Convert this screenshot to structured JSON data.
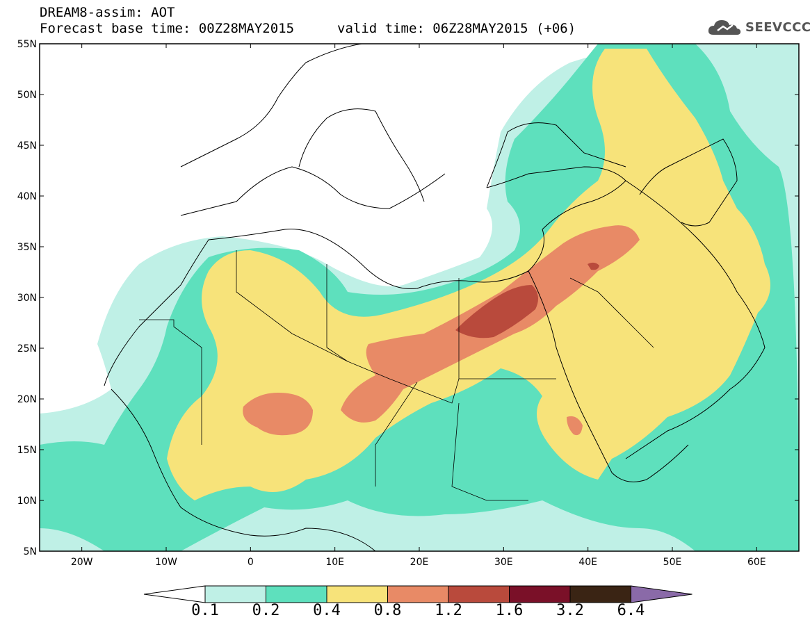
{
  "header": {
    "line1": "DREAM8-assim: AOT",
    "line2": "Forecast base time: 00Z28MAY2015",
    "line2b": "valid time: 06Z28MAY2015 (+06)"
  },
  "logo": {
    "text": "SEEVCCC",
    "icon": "cloud-icon"
  },
  "axes": {
    "x_ticks": [
      "20W",
      "10W",
      "0",
      "10E",
      "20E",
      "30E",
      "40E",
      "50E",
      "60E"
    ],
    "y_ticks": [
      "55N",
      "50N",
      "45N",
      "40N",
      "35N",
      "30N",
      "25N",
      "20N",
      "15N",
      "10N",
      "5N"
    ]
  },
  "colorbar": {
    "labels": [
      "0.1",
      "0.2",
      "0.4",
      "0.8",
      "1.2",
      "1.6",
      "3.2",
      "6.4"
    ],
    "colors": [
      "#ffffff",
      "#bff0e6",
      "#5ee0bd",
      "#f7e37a",
      "#e88a66",
      "#b94a3c",
      "#7a1028",
      "#3a2414",
      "#8a6aa8"
    ]
  },
  "map_data": {
    "variable": "AOT",
    "lon_range": [
      -25,
      65
    ],
    "lat_range": [
      5,
      55
    ],
    "max_region": "Egypt / northeastern Africa, values 1.2–1.6"
  }
}
